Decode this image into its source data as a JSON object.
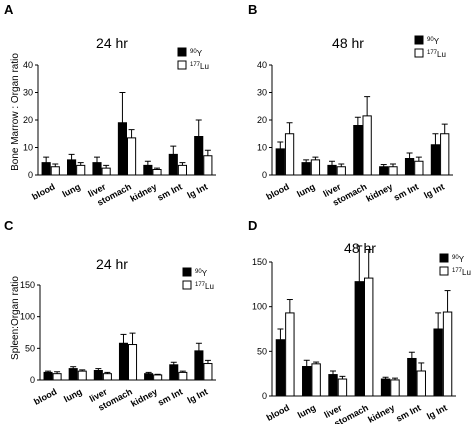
{
  "ylabels": {
    "top": "Bone Marrow : Organ ratio",
    "bottom": "Spleen:Organ ratio"
  },
  "colors": {
    "y90": "#000000",
    "lu177": "#ffffff",
    "axis": "#000000"
  },
  "chart_data": [
    {
      "type": "bar",
      "panel": "A",
      "title": "24 hr",
      "ylabel": "Bone Marrow : Organ ratio",
      "ylim": [
        0,
        40
      ],
      "yticks": [
        0,
        10,
        20,
        30,
        40
      ],
      "categories": [
        "blood",
        "lung",
        "liver",
        "stomach",
        "kidney",
        "sm Int",
        "lg Int"
      ],
      "series": [
        {
          "name": "90Y",
          "sup": "90",
          "base": "Y",
          "fill": "#000000",
          "values": [
            4.5,
            5.5,
            4.5,
            19,
            3.5,
            7.5,
            14
          ],
          "errors": [
            2,
            2,
            2,
            11,
            1.5,
            3,
            6
          ]
        },
        {
          "name": "177Lu",
          "sup": "177",
          "base": "Lu",
          "fill": "#ffffff",
          "values": [
            3,
            3.5,
            2.5,
            13.5,
            2,
            3.5,
            7
          ],
          "errors": [
            1,
            1,
            1,
            3,
            0.5,
            1,
            2
          ]
        }
      ]
    },
    {
      "type": "bar",
      "panel": "B",
      "title": "48 hr",
      "ylabel": "",
      "ylim": [
        0,
        40
      ],
      "yticks": [
        0,
        10,
        20,
        30,
        40
      ],
      "categories": [
        "blood",
        "lung",
        "liver",
        "stomach",
        "kidney",
        "sm Int",
        "lg Int"
      ],
      "series": [
        {
          "name": "90Y",
          "sup": "90",
          "base": "Y",
          "fill": "#000000",
          "values": [
            9.5,
            4.5,
            3.5,
            18,
            3,
            6,
            11
          ],
          "errors": [
            2.5,
            1,
            1.5,
            3,
            0.8,
            2,
            4
          ]
        },
        {
          "name": "177Lu",
          "sup": "177",
          "base": "Lu",
          "fill": "#ffffff",
          "values": [
            15,
            5.5,
            3,
            21.5,
            3,
            5,
            15
          ],
          "errors": [
            4,
            1,
            1,
            7,
            1,
            1.5,
            3.5
          ]
        }
      ]
    },
    {
      "type": "bar",
      "panel": "C",
      "title": "24 hr",
      "ylabel": "Spleen:Organ ratio",
      "ylim": [
        0,
        150
      ],
      "yticks": [
        0,
        50,
        100,
        150
      ],
      "categories": [
        "blood",
        "lung",
        "liver",
        "stomach",
        "kidney",
        "sm Int",
        "lg Int"
      ],
      "series": [
        {
          "name": "90Y",
          "sup": "90",
          "base": "Y",
          "fill": "#000000",
          "values": [
            12,
            18,
            15,
            58,
            10,
            24,
            46
          ],
          "errors": [
            2,
            3,
            3,
            14,
            2,
            4,
            12
          ]
        },
        {
          "name": "177Lu",
          "sup": "177",
          "base": "Lu",
          "fill": "#ffffff",
          "values": [
            10,
            14,
            10,
            56,
            8,
            12,
            26
          ],
          "errors": [
            3,
            2,
            2,
            18,
            1,
            2,
            5
          ]
        }
      ]
    },
    {
      "type": "bar",
      "panel": "D",
      "title": "48 hr",
      "ylabel": "",
      "ylim": [
        0,
        150
      ],
      "yticks": [
        0,
        50,
        100,
        150
      ],
      "categories": [
        "blood",
        "lung",
        "liver",
        "stomach",
        "kidney",
        "sm Int",
        "lg Int"
      ],
      "series": [
        {
          "name": "90Y",
          "sup": "90",
          "base": "Y",
          "fill": "#000000",
          "values": [
            63,
            33,
            24,
            128,
            19,
            42,
            75
          ],
          "errors": [
            12,
            7,
            4,
            40,
            2,
            7,
            18
          ]
        },
        {
          "name": "177Lu",
          "sup": "177",
          "base": "Lu",
          "fill": "#ffffff",
          "values": [
            93,
            36,
            19,
            132,
            18,
            28,
            94
          ],
          "errors": [
            15,
            2,
            3,
            32,
            2,
            9,
            24
          ]
        }
      ]
    }
  ]
}
